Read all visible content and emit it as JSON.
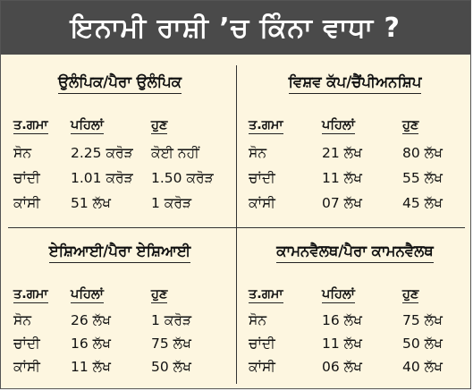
{
  "title": "ਇਨਾਮੀ ਰਾਸ਼ੀ ’ਚ ਕਿੰਨਾ ਵਾਧਾ ?",
  "columns": [
    "ਤ.ਗਮਾ",
    "ਪਹਿਲਾਂ",
    "ਹੁਣ"
  ],
  "panels": [
    {
      "title": "ਉਲੰਪਿਕ/ਪੈਰਾ ਉਲੰਪਿਕ",
      "rows": [
        {
          "medal": "ਸੋਨ",
          "before": "2.25 ਕਰੋੜ",
          "now": "ਕੋਈ ਨਹੀਂ"
        },
        {
          "medal": "ਚਾਂਦੀ",
          "before": "1.01 ਕਰੋੜ",
          "now": "1.50 ਕਰੋੜ"
        },
        {
          "medal": "ਕਾਂਸੀ",
          "before": "51 ਲੱਖ",
          "now": "1 ਕਰੋੜ"
        }
      ]
    },
    {
      "title": "ਵਿਸ਼ਵ ਕੱਪ/ਚੈਂਪੀਅਨਸ਼ਿਪ",
      "rows": [
        {
          "medal": "ਸੋਨ",
          "before": "21 ਲੱਖ",
          "now": "80 ਲੱਖ"
        },
        {
          "medal": "ਚਾਂਦੀ",
          "before": "11 ਲੱਖ",
          "now": "55 ਲੱਖ"
        },
        {
          "medal": "ਕਾਂਸੀ",
          "before": "07 ਲੱਖ",
          "now": "45 ਲੱਖ"
        }
      ]
    },
    {
      "title": "ਏਸ਼ਿਆਈ/ਪੈਰਾ ਏਸ਼ਿਆਈ",
      "rows": [
        {
          "medal": "ਸੋਨ",
          "before": "26 ਲੱਖ",
          "now": "1 ਕਰੋੜ"
        },
        {
          "medal": "ਚਾਂਦੀ",
          "before": "16 ਲੱਖ",
          "now": "75 ਲੱਖ"
        },
        {
          "medal": "ਕਾਂਸੀ",
          "before": "11 ਲੱਖ",
          "now": "50 ਲੱਖ"
        }
      ]
    },
    {
      "title": "ਕਾਮਨਵੈਲਥ/ਪੈਰਾ ਕਾਮਨਵੈਲਥ",
      "rows": [
        {
          "medal": "ਸੋਨ",
          "before": "16 ਲੱਖ",
          "now": "75 ਲੱਖ"
        },
        {
          "medal": "ਚਾਂਦੀ",
          "before": "11 ਲੱਖ",
          "now": "50 ਲੱਖ"
        },
        {
          "medal": "ਕਾਂਸੀ",
          "before": "06 ਲੱਖ",
          "now": "40 ਲੱਖ"
        }
      ]
    }
  ],
  "colors": {
    "header_bg": "#4a4a4a",
    "body_bg": "#fdf6e0",
    "text": "#111111"
  }
}
